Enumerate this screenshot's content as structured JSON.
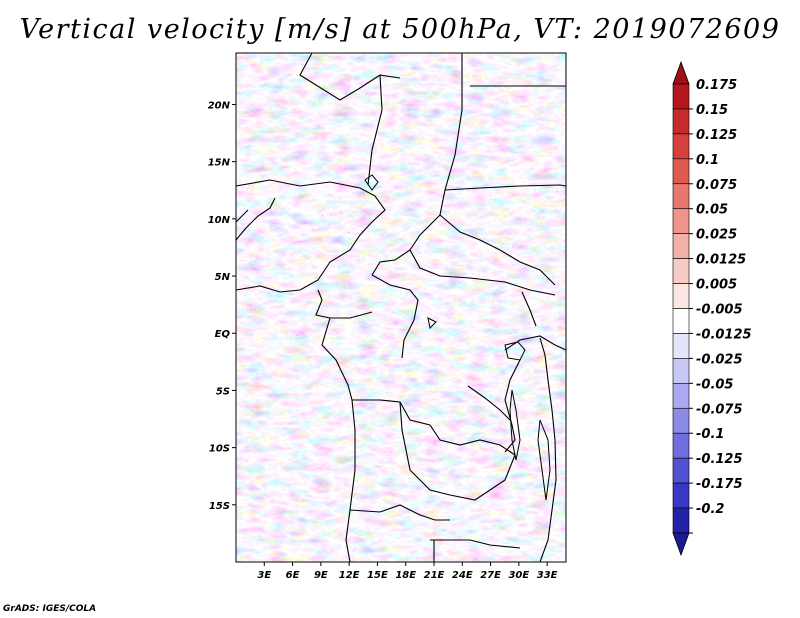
{
  "title": "Vertical velocity [m/s] at 500hPa, VT: 2019072609",
  "footer": "GrADS: IGES/COLA",
  "map": {
    "variable": "Vertical velocity",
    "units": "m/s",
    "level": "500hPa",
    "valid_time": "2019072609",
    "lat_ticks": [
      {
        "label": "20N",
        "lat": 20
      },
      {
        "label": "15N",
        "lat": 15
      },
      {
        "label": "10N",
        "lat": 10
      },
      {
        "label": "5N",
        "lat": 5
      },
      {
        "label": "EQ",
        "lat": 0
      },
      {
        "label": "5S",
        "lat": -5
      },
      {
        "label": "10S",
        "lat": -10
      },
      {
        "label": "15S",
        "lat": -15
      }
    ],
    "lon_ticks": [
      {
        "label": "3E",
        "lon": 3
      },
      {
        "label": "6E",
        "lon": 6
      },
      {
        "label": "9E",
        "lon": 9
      },
      {
        "label": "12E",
        "lon": 12
      },
      {
        "label": "15E",
        "lon": 15
      },
      {
        "label": "18E",
        "lon": 18
      },
      {
        "label": "21E",
        "lon": 21
      },
      {
        "label": "24E",
        "lon": 24
      },
      {
        "label": "27E",
        "lon": 27
      },
      {
        "label": "30E",
        "lon": 30
      },
      {
        "label": "33E",
        "lon": 33
      }
    ],
    "lon_range": [
      0,
      35
    ],
    "lat_range": [
      -20,
      24.5
    ]
  },
  "colorbar": {
    "levels": [
      {
        "label": "0.175",
        "color": "#b3161c"
      },
      {
        "label": "0.15",
        "color": "#c62a2c"
      },
      {
        "label": "0.125",
        "color": "#d6403c"
      },
      {
        "label": "0.1",
        "color": "#e05a52"
      },
      {
        "label": "0.075",
        "color": "#e8786e"
      },
      {
        "label": "0.05",
        "color": "#ee948a"
      },
      {
        "label": "0.025",
        "color": "#f3b0a8"
      },
      {
        "label": "0.0125",
        "color": "#f8ccc6"
      },
      {
        "label": "0.005",
        "color": "#fce6e2"
      },
      {
        "label": "-0.005",
        "color": "#ffffff"
      },
      {
        "label": "-0.0125",
        "color": "#e4e4fb"
      },
      {
        "label": "-0.025",
        "color": "#c8c8f6"
      },
      {
        "label": "-0.05",
        "color": "#aaaaf0"
      },
      {
        "label": "-0.075",
        "color": "#8c8ce8"
      },
      {
        "label": "-0.1",
        "color": "#6e6ede"
      },
      {
        "label": "-0.125",
        "color": "#5252d2"
      },
      {
        "label": "-0.175",
        "color": "#3838c4"
      },
      {
        "label": "-0.2",
        "color": "#2222a8"
      }
    ],
    "top_triangle_color": "#a00f16",
    "bottom_triangle_color": "#1a1a96"
  }
}
